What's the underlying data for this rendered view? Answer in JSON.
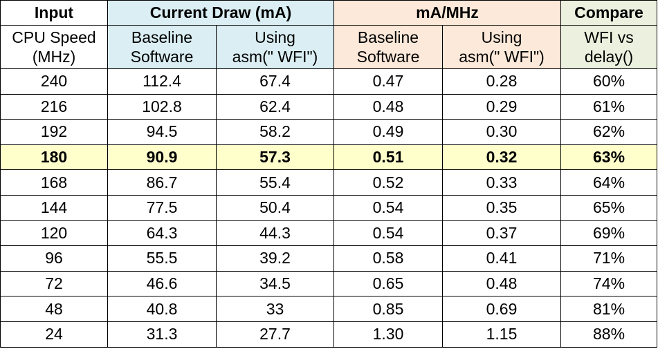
{
  "colors": {
    "input_header": "#ffffff",
    "current_header": "#daeef3",
    "mamhz_header": "#fde9d9",
    "compare_header": "#ebf1de",
    "highlight_row": "#ffffcc",
    "border": "#000000"
  },
  "chart_data": {
    "type": "table",
    "group_headers": [
      {
        "label": "Input",
        "span": 1
      },
      {
        "label": "Current Draw (mA)",
        "span": 2
      },
      {
        "label": "mA/MHz",
        "span": 2
      },
      {
        "label": "Compare",
        "span": 1
      }
    ],
    "columns": [
      [
        "CPU Speed",
        "(MHz)"
      ],
      [
        "Baseline",
        "Software"
      ],
      [
        "Using",
        "asm(\" WFI\")"
      ],
      [
        "Baseline",
        "Software"
      ],
      [
        "Using",
        "asm(\" WFI\")"
      ],
      [
        "WFI vs",
        "delay()"
      ]
    ],
    "rows": [
      [
        "240",
        "112.4",
        "67.4",
        "0.47",
        "0.28",
        "60%"
      ],
      [
        "216",
        "102.8",
        "62.4",
        "0.48",
        "0.29",
        "61%"
      ],
      [
        "192",
        "94.5",
        "58.2",
        "0.49",
        "0.30",
        "62%"
      ],
      [
        "180",
        "90.9",
        "57.3",
        "0.51",
        "0.32",
        "63%"
      ],
      [
        "168",
        "86.7",
        "55.4",
        "0.52",
        "0.33",
        "64%"
      ],
      [
        "144",
        "77.5",
        "50.4",
        "0.54",
        "0.35",
        "65%"
      ],
      [
        "120",
        "64.3",
        "44.3",
        "0.54",
        "0.37",
        "69%"
      ],
      [
        "96",
        "55.5",
        "39.2",
        "0.58",
        "0.41",
        "71%"
      ],
      [
        "72",
        "46.6",
        "34.5",
        "0.65",
        "0.48",
        "74%"
      ],
      [
        "48",
        "40.8",
        "33",
        "0.85",
        "0.69",
        "81%"
      ],
      [
        "24",
        "31.3",
        "27.7",
        "1.30",
        "1.15",
        "88%"
      ]
    ],
    "highlighted_row_index": 3
  }
}
